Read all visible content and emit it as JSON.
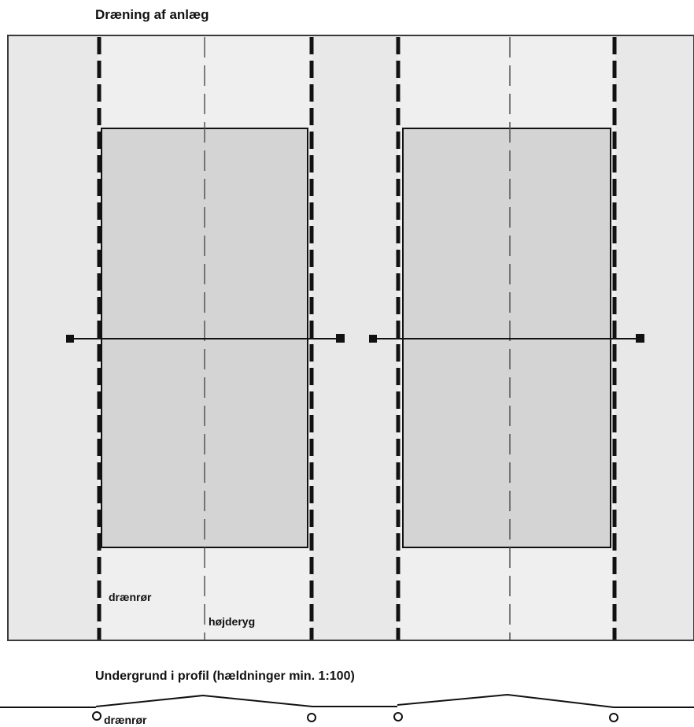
{
  "diagram": {
    "title": "Dræning af anlæg",
    "profile_title": "Undergrund i profil (hældninger min. 1:100)",
    "plan_labels": {
      "drain_pipe": "drænrør",
      "ridge": "højderyg"
    },
    "profile_labels": {
      "drain_pipe": "drænrør"
    },
    "colors": {
      "background": "#ffffff",
      "site_fill": "#e8e8e8",
      "bed_fill": "#d4d4d4",
      "inner_strip_fill": "#efefef",
      "line": "#111111",
      "border": "#3a3a3a"
    }
  }
}
